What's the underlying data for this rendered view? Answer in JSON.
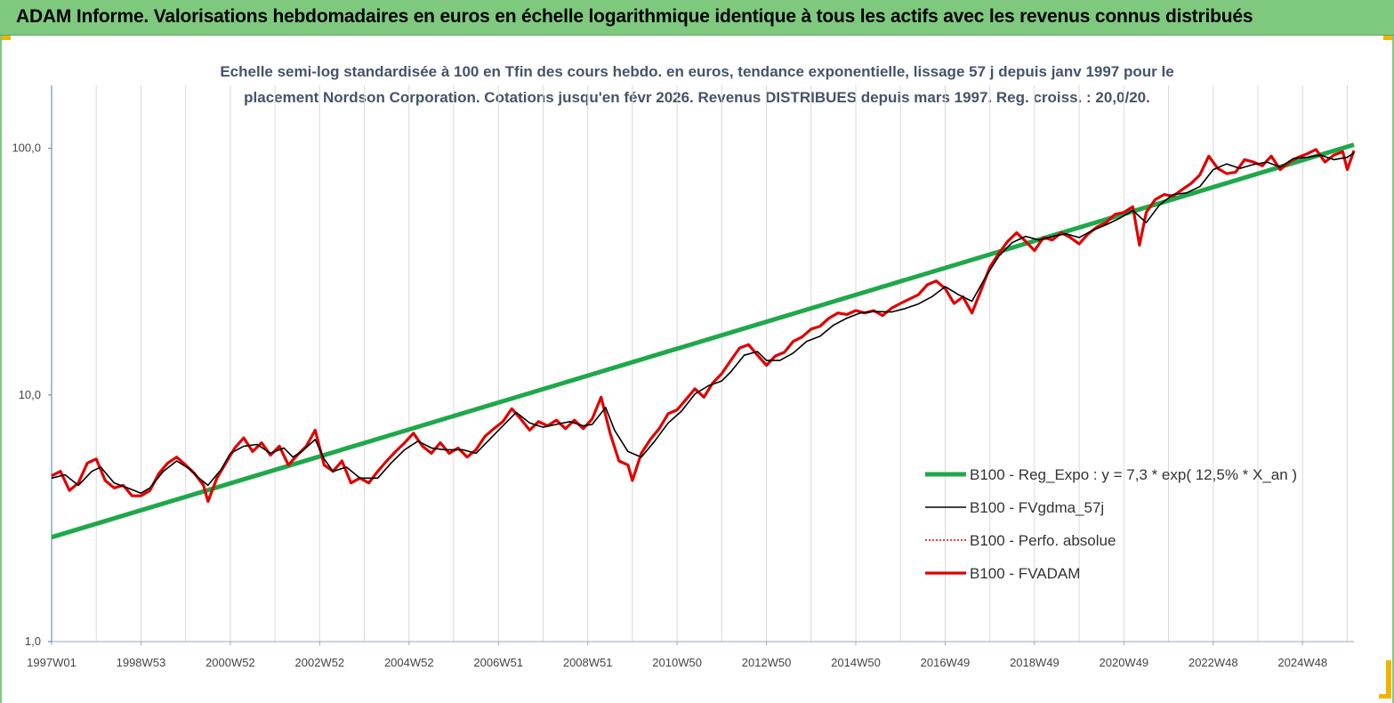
{
  "banner": {
    "title": "ADAM Informe. Valorisations hebdomadaires en euros en échelle logarithmique identique à tous les actifs avec les revenus connus distribués"
  },
  "colors": {
    "banner_bg": "#7fc97f",
    "corner_marks": "#f2b300",
    "regression": "#1fa84a",
    "fvgdma": "#000000",
    "perfo": "#e00000",
    "fvadam": "#e00000",
    "grid": "#d9d9d9",
    "subtitle": "#44546a"
  },
  "chart_data": {
    "type": "line",
    "title_lines": [
      "Echelle semi-log standardisée à 100 en Tfin des cours hebdo. en euros, tendance exponentielle, lissage 57 j depuis janv 1997 pour le",
      "placement Nordson Corporation. Cotations jusqu'en févr 2026.  Revenus DISTRIBUES depuis mars  1997. Reg. croiss. : 20,0/20."
    ],
    "y_scale": "log",
    "ylim": [
      1,
      180
    ],
    "y_ticks": [
      {
        "value": 1,
        "label": "1,0"
      },
      {
        "value": 10,
        "label": "10,0"
      },
      {
        "value": 100,
        "label": "100,0"
      }
    ],
    "xlim": [
      1997.0,
      2026.15
    ],
    "x_ticks": [
      {
        "value": 1997.0,
        "label": "1997W01"
      },
      {
        "value": 1999.0,
        "label": "1998W53"
      },
      {
        "value": 2001.0,
        "label": "2000W52"
      },
      {
        "value": 2003.0,
        "label": "2002W52"
      },
      {
        "value": 2005.0,
        "label": "2004W52"
      },
      {
        "value": 2007.0,
        "label": "2006W51"
      },
      {
        "value": 2009.0,
        "label": "2008W51"
      },
      {
        "value": 2011.0,
        "label": "2010W50"
      },
      {
        "value": 2013.0,
        "label": "2012W50"
      },
      {
        "value": 2015.0,
        "label": "2014W50"
      },
      {
        "value": 2017.0,
        "label": "2016W49"
      },
      {
        "value": 2019.0,
        "label": "2018W49"
      },
      {
        "value": 2021.0,
        "label": "2020W49"
      },
      {
        "value": 2023.0,
        "label": "2022W48"
      },
      {
        "value": 2025.0,
        "label": "2024W48"
      }
    ],
    "grid": true,
    "legend_position": "bottom-right",
    "series": [
      {
        "name": "B100 - Reg_Expo : y = 7,3 * exp( 12,5% *  X_an )",
        "style": "regression",
        "points": [
          [
            1997.0,
            2.65
          ],
          [
            2026.15,
            103.5
          ]
        ]
      },
      {
        "name": "B100 - FVgdma_57j",
        "style": "smooth",
        "points": [
          [
            1997.0,
            4.6
          ],
          [
            1997.3,
            4.75
          ],
          [
            1997.6,
            4.3
          ],
          [
            1997.9,
            4.9
          ],
          [
            1998.1,
            5.1
          ],
          [
            1998.4,
            4.4
          ],
          [
            1998.7,
            4.2
          ],
          [
            1999.0,
            4.0
          ],
          [
            1999.2,
            4.2
          ],
          [
            1999.5,
            4.9
          ],
          [
            1999.8,
            5.4
          ],
          [
            2000.1,
            5.0
          ],
          [
            2000.3,
            4.6
          ],
          [
            2000.5,
            4.3
          ],
          [
            2000.8,
            5.0
          ],
          [
            2001.0,
            5.8
          ],
          [
            2001.3,
            6.2
          ],
          [
            2001.6,
            6.3
          ],
          [
            2001.9,
            5.8
          ],
          [
            2002.2,
            6.1
          ],
          [
            2002.4,
            5.6
          ],
          [
            2002.6,
            5.9
          ],
          [
            2002.9,
            6.6
          ],
          [
            2003.1,
            5.5
          ],
          [
            2003.3,
            4.9
          ],
          [
            2003.6,
            5.1
          ],
          [
            2003.9,
            4.6
          ],
          [
            2004.3,
            4.6
          ],
          [
            2004.6,
            5.3
          ],
          [
            2004.9,
            6.0
          ],
          [
            2005.2,
            6.5
          ],
          [
            2005.5,
            6.1
          ],
          [
            2005.8,
            6.0
          ],
          [
            2006.2,
            6.0
          ],
          [
            2006.5,
            5.8
          ],
          [
            2006.8,
            6.6
          ],
          [
            2007.1,
            7.5
          ],
          [
            2007.4,
            8.5
          ],
          [
            2007.7,
            7.7
          ],
          [
            2008.0,
            7.4
          ],
          [
            2008.3,
            7.6
          ],
          [
            2008.6,
            7.8
          ],
          [
            2008.9,
            7.5
          ],
          [
            2009.1,
            7.6
          ],
          [
            2009.4,
            8.9
          ],
          [
            2009.6,
            7.2
          ],
          [
            2009.9,
            5.9
          ],
          [
            2010.2,
            5.6
          ],
          [
            2010.5,
            6.5
          ],
          [
            2010.8,
            7.7
          ],
          [
            2011.1,
            8.6
          ],
          [
            2011.4,
            10.1
          ],
          [
            2011.7,
            10.9
          ],
          [
            2012.0,
            11.4
          ],
          [
            2012.2,
            12.4
          ],
          [
            2012.5,
            14.5
          ],
          [
            2012.8,
            15.0
          ],
          [
            2013.0,
            13.8
          ],
          [
            2013.3,
            13.8
          ],
          [
            2013.6,
            14.8
          ],
          [
            2013.9,
            16.5
          ],
          [
            2014.2,
            17.3
          ],
          [
            2014.5,
            19.2
          ],
          [
            2014.8,
            20.5
          ],
          [
            2015.1,
            21.5
          ],
          [
            2015.4,
            21.8
          ],
          [
            2015.8,
            21.7
          ],
          [
            2016.1,
            22.4
          ],
          [
            2016.4,
            23.4
          ],
          [
            2016.7,
            25.0
          ],
          [
            2017.0,
            27.5
          ],
          [
            2017.3,
            25.5
          ],
          [
            2017.6,
            24.0
          ],
          [
            2017.9,
            30.0
          ],
          [
            2018.2,
            36.5
          ],
          [
            2018.5,
            41.5
          ],
          [
            2018.8,
            44.0
          ],
          [
            2019.1,
            42.5
          ],
          [
            2019.4,
            44.0
          ],
          [
            2019.7,
            45.0
          ],
          [
            2020.0,
            43.5
          ],
          [
            2020.3,
            46.5
          ],
          [
            2020.6,
            49.0
          ],
          [
            2020.9,
            52.0
          ],
          [
            2021.2,
            56.0
          ],
          [
            2021.5,
            50.0
          ],
          [
            2021.8,
            59.0
          ],
          [
            2022.1,
            65.0
          ],
          [
            2022.4,
            66.0
          ],
          [
            2022.7,
            70.0
          ],
          [
            2023.0,
            82.0
          ],
          [
            2023.3,
            86.5
          ],
          [
            2023.6,
            83.0
          ],
          [
            2023.9,
            86.0
          ],
          [
            2024.2,
            88.0
          ],
          [
            2024.5,
            84.0
          ],
          [
            2024.8,
            91.0
          ],
          [
            2025.1,
            92.0
          ],
          [
            2025.4,
            94.0
          ],
          [
            2025.7,
            90.0
          ],
          [
            2026.0,
            92.0
          ],
          [
            2026.15,
            96.0
          ]
        ]
      },
      {
        "name": "B100 - Perfo. absolue",
        "style": "dotted",
        "points": []
      },
      {
        "name": "B100 - FVADAM",
        "style": "thick",
        "points": [
          [
            1997.0,
            4.7
          ],
          [
            1997.2,
            4.9
          ],
          [
            1997.4,
            4.1
          ],
          [
            1997.6,
            4.4
          ],
          [
            1997.8,
            5.3
          ],
          [
            1998.0,
            5.5
          ],
          [
            1998.2,
            4.5
          ],
          [
            1998.4,
            4.2
          ],
          [
            1998.6,
            4.3
          ],
          [
            1998.8,
            3.9
          ],
          [
            1999.0,
            3.9
          ],
          [
            1999.2,
            4.1
          ],
          [
            1999.4,
            4.8
          ],
          [
            1999.6,
            5.3
          ],
          [
            1999.8,
            5.6
          ],
          [
            2000.0,
            5.2
          ],
          [
            2000.2,
            4.8
          ],
          [
            2000.4,
            4.3
          ],
          [
            2000.5,
            3.7
          ],
          [
            2000.7,
            4.6
          ],
          [
            2000.9,
            5.3
          ],
          [
            2001.1,
            6.1
          ],
          [
            2001.3,
            6.7
          ],
          [
            2001.5,
            5.9
          ],
          [
            2001.7,
            6.4
          ],
          [
            2001.9,
            5.7
          ],
          [
            2002.1,
            6.2
          ],
          [
            2002.3,
            5.2
          ],
          [
            2002.5,
            5.7
          ],
          [
            2002.7,
            6.2
          ],
          [
            2002.9,
            7.2
          ],
          [
            2003.1,
            5.2
          ],
          [
            2003.3,
            4.9
          ],
          [
            2003.5,
            5.4
          ],
          [
            2003.7,
            4.4
          ],
          [
            2003.9,
            4.6
          ],
          [
            2004.1,
            4.4
          ],
          [
            2004.3,
            4.9
          ],
          [
            2004.5,
            5.4
          ],
          [
            2004.7,
            5.9
          ],
          [
            2004.9,
            6.4
          ],
          [
            2005.1,
            7.0
          ],
          [
            2005.3,
            6.2
          ],
          [
            2005.5,
            5.8
          ],
          [
            2005.7,
            6.4
          ],
          [
            2005.9,
            5.8
          ],
          [
            2006.1,
            6.1
          ],
          [
            2006.3,
            5.6
          ],
          [
            2006.5,
            6.0
          ],
          [
            2006.7,
            6.8
          ],
          [
            2006.9,
            7.3
          ],
          [
            2007.1,
            7.8
          ],
          [
            2007.3,
            8.8
          ],
          [
            2007.5,
            8.0
          ],
          [
            2007.7,
            7.2
          ],
          [
            2007.9,
            7.8
          ],
          [
            2008.1,
            7.5
          ],
          [
            2008.3,
            7.9
          ],
          [
            2008.5,
            7.3
          ],
          [
            2008.7,
            7.9
          ],
          [
            2008.9,
            7.3
          ],
          [
            2009.1,
            8.0
          ],
          [
            2009.3,
            9.8
          ],
          [
            2009.5,
            7.0
          ],
          [
            2009.7,
            5.4
          ],
          [
            2009.9,
            5.2
          ],
          [
            2010.0,
            4.5
          ],
          [
            2010.2,
            5.8
          ],
          [
            2010.4,
            6.6
          ],
          [
            2010.6,
            7.3
          ],
          [
            2010.8,
            8.4
          ],
          [
            2011.0,
            8.7
          ],
          [
            2011.2,
            9.6
          ],
          [
            2011.4,
            10.6
          ],
          [
            2011.6,
            9.8
          ],
          [
            2011.8,
            11.2
          ],
          [
            2012.0,
            12.2
          ],
          [
            2012.2,
            13.8
          ],
          [
            2012.4,
            15.5
          ],
          [
            2012.6,
            16.0
          ],
          [
            2012.8,
            14.5
          ],
          [
            2013.0,
            13.2
          ],
          [
            2013.2,
            14.4
          ],
          [
            2013.4,
            14.9
          ],
          [
            2013.6,
            16.5
          ],
          [
            2013.8,
            17.2
          ],
          [
            2014.0,
            18.5
          ],
          [
            2014.2,
            19.0
          ],
          [
            2014.4,
            20.5
          ],
          [
            2014.6,
            21.5
          ],
          [
            2014.8,
            21.2
          ],
          [
            2015.0,
            22.0
          ],
          [
            2015.2,
            21.5
          ],
          [
            2015.4,
            22.0
          ],
          [
            2015.6,
            21.0
          ],
          [
            2015.8,
            22.5
          ],
          [
            2016.0,
            23.5
          ],
          [
            2016.2,
            24.5
          ],
          [
            2016.4,
            25.5
          ],
          [
            2016.6,
            28.0
          ],
          [
            2016.8,
            29.0
          ],
          [
            2017.0,
            27.0
          ],
          [
            2017.2,
            23.5
          ],
          [
            2017.4,
            25.0
          ],
          [
            2017.6,
            21.5
          ],
          [
            2017.8,
            26.5
          ],
          [
            2018.0,
            33.0
          ],
          [
            2018.2,
            37.5
          ],
          [
            2018.4,
            42.0
          ],
          [
            2018.6,
            45.5
          ],
          [
            2018.8,
            42.0
          ],
          [
            2019.0,
            38.5
          ],
          [
            2019.2,
            43.5
          ],
          [
            2019.4,
            42.5
          ],
          [
            2019.6,
            45.5
          ],
          [
            2019.8,
            43.5
          ],
          [
            2020.0,
            41.0
          ],
          [
            2020.2,
            45.0
          ],
          [
            2020.4,
            48.0
          ],
          [
            2020.6,
            50.0
          ],
          [
            2020.8,
            54.0
          ],
          [
            2021.0,
            55.0
          ],
          [
            2021.2,
            58.0
          ],
          [
            2021.35,
            40.5
          ],
          [
            2021.5,
            55.0
          ],
          [
            2021.7,
            62.0
          ],
          [
            2021.9,
            65.0
          ],
          [
            2022.1,
            64.0
          ],
          [
            2022.3,
            68.0
          ],
          [
            2022.5,
            72.0
          ],
          [
            2022.7,
            78.0
          ],
          [
            2022.9,
            93.0
          ],
          [
            2023.1,
            83.0
          ],
          [
            2023.3,
            79.0
          ],
          [
            2023.5,
            80.0
          ],
          [
            2023.7,
            90.0
          ],
          [
            2023.9,
            88.0
          ],
          [
            2024.1,
            85.0
          ],
          [
            2024.3,
            93.0
          ],
          [
            2024.5,
            82.0
          ],
          [
            2024.7,
            88.0
          ],
          [
            2024.9,
            92.0
          ],
          [
            2025.1,
            95.0
          ],
          [
            2025.3,
            99.0
          ],
          [
            2025.5,
            88.0
          ],
          [
            2025.7,
            94.0
          ],
          [
            2025.9,
            97.0
          ],
          [
            2026.0,
            82.0
          ],
          [
            2026.15,
            98.0
          ]
        ]
      }
    ]
  }
}
